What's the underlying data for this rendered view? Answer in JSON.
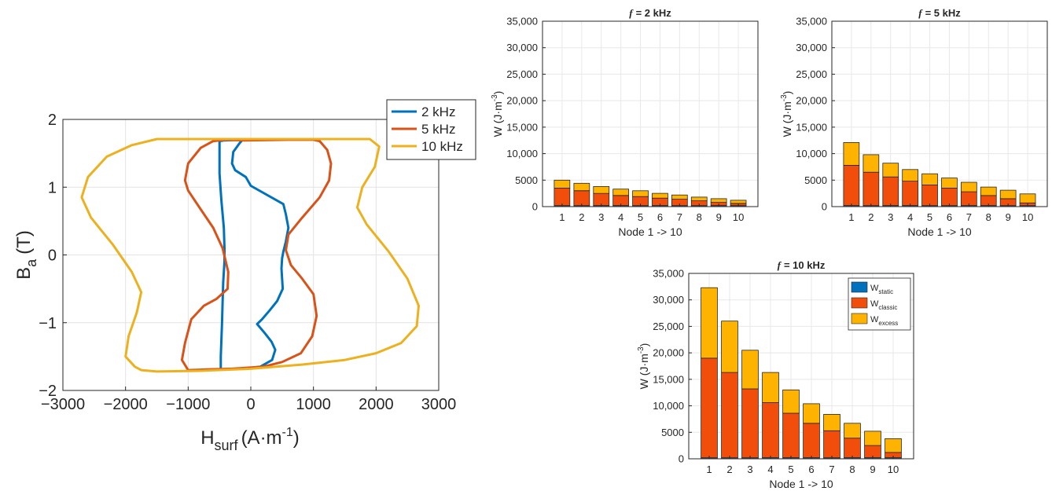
{
  "chart_data": [
    {
      "type": "line",
      "xlabel": "H",
      "xlabel_sub": "surf",
      "xlabel_unit": "(A·m",
      "xlabel_unit_sup": "-1",
      "xlabel_unit_close": ")",
      "ylabel": "B",
      "ylabel_sub": "a",
      "ylabel_unit": "(T)",
      "xlim": [
        -3000,
        3000
      ],
      "ylim": [
        -2,
        2
      ],
      "xticks": [
        -3000,
        -2000,
        -1000,
        0,
        1000,
        2000,
        3000
      ],
      "xtick_labels": [
        "−3000",
        "−2000",
        "−1000",
        "0",
        "1000",
        "2000",
        "3000"
      ],
      "yticks": [
        -2,
        -1,
        0,
        1,
        2
      ],
      "ytick_labels": [
        "−2",
        "−1",
        "0",
        "1",
        "2"
      ],
      "grid": true,
      "legend": "top-right",
      "series": [
        {
          "name": "2 kHz",
          "color": "#0072BD",
          "x": [
            -500,
            -420,
            -130,
            -180,
            -280,
            -300,
            -250,
            -80,
            0,
            520,
            560,
            600,
            560,
            520,
            500,
            490,
            500,
            510,
            420,
            300,
            180,
            100,
            220,
            330,
            390,
            340,
            150,
            -130,
            -480,
            -480,
            -470,
            -460,
            -450,
            -440,
            -420,
            -420,
            -430,
            -470,
            -500
          ],
          "y": [
            1.68,
            1.69,
            1.7,
            1.65,
            1.52,
            1.35,
            1.25,
            1.15,
            1.02,
            0.75,
            0.6,
            0.4,
            0.2,
            0.05,
            -0.05,
            -0.2,
            -0.35,
            -0.5,
            -0.68,
            -0.82,
            -0.95,
            -1.02,
            -1.15,
            -1.28,
            -1.4,
            -1.55,
            -1.65,
            -1.68,
            -1.69,
            -1.5,
            -1.25,
            -1.0,
            -0.7,
            -0.4,
            -0.1,
            0.1,
            0.4,
            0.8,
            1.2
          ]
        },
        {
          "name": "5 kHz",
          "color": "#D95319",
          "x": [
            -100,
            600,
            1000,
            1100,
            1220,
            1280,
            1250,
            1100,
            820,
            600,
            560,
            640,
            820,
            1000,
            1050,
            980,
            800,
            500,
            200,
            -300,
            -700,
            -1000,
            -1100,
            -1050,
            -950,
            -750,
            -550,
            -370,
            -360,
            -450,
            -600,
            -820,
            -1000,
            -1050,
            -1000,
            -800,
            -600,
            -400
          ],
          "y": [
            1.69,
            1.7,
            1.7,
            1.68,
            1.55,
            1.35,
            1.1,
            0.85,
            0.55,
            0.3,
            0.07,
            -0.15,
            -0.35,
            -0.58,
            -0.9,
            -1.2,
            -1.45,
            -1.58,
            -1.65,
            -1.68,
            -1.69,
            -1.7,
            -1.55,
            -1.3,
            -0.95,
            -0.75,
            -0.65,
            -0.5,
            -0.25,
            0.1,
            0.4,
            0.7,
            0.95,
            1.1,
            1.35,
            1.58,
            1.68,
            1.7
          ]
        },
        {
          "name": "10 kHz",
          "color": "#EDB120",
          "x": [
            -1500,
            0,
            1000,
            1900,
            2050,
            1980,
            1780,
            1700,
            1850,
            2200,
            2500,
            2680,
            2650,
            2400,
            2000,
            1500,
            800,
            0,
            -800,
            -1500,
            -1750,
            -1850,
            -1950,
            -2000,
            -1950,
            -1820,
            -1750,
            -1900,
            -2200,
            -2550,
            -2700,
            -2600,
            -2300,
            -1900
          ],
          "y": [
            1.71,
            1.71,
            1.71,
            1.71,
            1.6,
            1.3,
            1.0,
            0.7,
            0.45,
            0.05,
            -0.35,
            -0.75,
            -1.05,
            -1.3,
            -1.45,
            -1.55,
            -1.62,
            -1.68,
            -1.71,
            -1.72,
            -1.7,
            -1.65,
            -1.55,
            -1.5,
            -1.2,
            -0.85,
            -0.55,
            -0.25,
            0.15,
            0.55,
            0.85,
            1.15,
            1.45,
            1.62
          ]
        }
      ]
    },
    {
      "type": "bar",
      "stacked": true,
      "title": "= 2 kHz",
      "title_symbol": "f",
      "xlabel": "Node 1 -> 10",
      "ylabel": "W (J·m",
      "ylabel_sup": "-3",
      "ylabel_close": ")",
      "categories": [
        "1",
        "2",
        "3",
        "4",
        "5",
        "6",
        "7",
        "8",
        "9",
        "10"
      ],
      "ylim": [
        0,
        35000
      ],
      "yticks": [
        0,
        5000,
        10000,
        15000,
        20000,
        25000,
        30000,
        35000
      ],
      "ytick_labels": [
        "0",
        "5000",
        "10,000",
        "15,000",
        "20,000",
        "25,000",
        "30,000",
        "35,000"
      ],
      "grid": true,
      "series": [
        {
          "id": "static",
          "color": "#0072BD",
          "values": [
            200,
            200,
            200,
            200,
            200,
            200,
            200,
            200,
            200,
            200
          ]
        },
        {
          "id": "classic",
          "color": "#F04E0A",
          "values": [
            3300,
            2800,
            2300,
            1900,
            1700,
            1400,
            1200,
            900,
            600,
            400
          ]
        },
        {
          "id": "excess",
          "color": "#FDB300",
          "values": [
            1500,
            1400,
            1300,
            1200,
            1100,
            900,
            800,
            700,
            700,
            600
          ]
        }
      ]
    },
    {
      "type": "bar",
      "stacked": true,
      "title": "= 5 kHz",
      "title_symbol": "f",
      "xlabel": "Node 1 -> 10",
      "ylabel": "W (J·m",
      "ylabel_sup": "-3",
      "ylabel_close": ")",
      "categories": [
        "1",
        "2",
        "3",
        "4",
        "5",
        "6",
        "7",
        "8",
        "9",
        "10"
      ],
      "ylim": [
        0,
        35000
      ],
      "yticks": [
        0,
        5000,
        10000,
        15000,
        20000,
        25000,
        30000,
        35000
      ],
      "ytick_labels": [
        "0",
        "5000",
        "10,000",
        "15,000",
        "20,000",
        "25,000",
        "30,000",
        "35,000"
      ],
      "grid": true,
      "series": [
        {
          "id": "static",
          "color": "#0072BD",
          "values": [
            200,
            200,
            200,
            200,
            200,
            200,
            200,
            200,
            200,
            200
          ]
        },
        {
          "id": "classic",
          "color": "#F04E0A",
          "values": [
            7600,
            6300,
            5400,
            4600,
            3900,
            3300,
            2600,
            1900,
            1300,
            500
          ]
        },
        {
          "id": "excess",
          "color": "#FDB300",
          "values": [
            4300,
            3300,
            2600,
            2200,
            2100,
            1900,
            1800,
            1600,
            1600,
            1700
          ]
        }
      ]
    },
    {
      "type": "bar",
      "stacked": true,
      "title": "= 10 kHz",
      "title_symbol": "f",
      "xlabel": "Node 1 -> 10",
      "ylabel": "W (J·m",
      "ylabel_sup": "-3",
      "ylabel_close": ")",
      "categories": [
        "1",
        "2",
        "3",
        "4",
        "5",
        "6",
        "7",
        "8",
        "9",
        "10"
      ],
      "ylim": [
        0,
        35000
      ],
      "yticks": [
        0,
        5000,
        10000,
        15000,
        20000,
        25000,
        30000,
        35000
      ],
      "ytick_labels": [
        "0",
        "5000",
        "10,000",
        "15,000",
        "20,000",
        "25,000",
        "30,000",
        "35,000"
      ],
      "grid": true,
      "legend": "top-right",
      "series": [
        {
          "id": "static",
          "name": "W",
          "name_sub": "static",
          "color": "#0072BD",
          "values": [
            200,
            200,
            200,
            200,
            200,
            200,
            200,
            200,
            200,
            200
          ]
        },
        {
          "id": "classic",
          "name": "W",
          "name_sub": "classic",
          "color": "#F04E0A",
          "values": [
            18800,
            16100,
            13000,
            10400,
            8400,
            6500,
            5100,
            3700,
            2300,
            1000
          ]
        },
        {
          "id": "excess",
          "name": "W",
          "name_sub": "excess",
          "color": "#FDB300",
          "values": [
            13300,
            9700,
            7300,
            5700,
            4400,
            3700,
            3100,
            2800,
            2700,
            2600
          ]
        }
      ]
    }
  ]
}
